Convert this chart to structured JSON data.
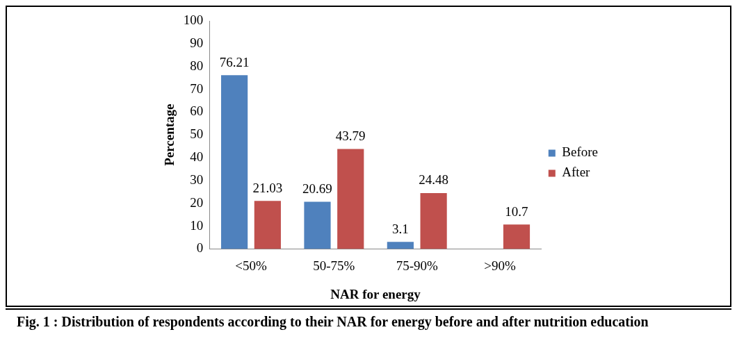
{
  "chart_data": {
    "type": "bar",
    "categories": [
      "<50%",
      "50-75%",
      "75-90%",
      ">90%"
    ],
    "series": [
      {
        "name": "Before",
        "color": "#4f81bd",
        "values": [
          76.21,
          20.69,
          3.1,
          null
        ]
      },
      {
        "name": "After",
        "color": "#c0504d",
        "values": [
          21.03,
          43.79,
          24.48,
          10.7
        ]
      }
    ],
    "xlabel": "NAR for energy",
    "ylabel": "Percentage",
    "ylim": [
      0,
      100
    ],
    "yticks": [
      0,
      10,
      20,
      30,
      40,
      50,
      60,
      70,
      80,
      90,
      100
    ],
    "data_labels": true,
    "legend": "right",
    "grid": false,
    "annotations": [
      "Fig. 1 :  Distribution of respondents according to their NAR for energy before and after nutrition education"
    ]
  }
}
